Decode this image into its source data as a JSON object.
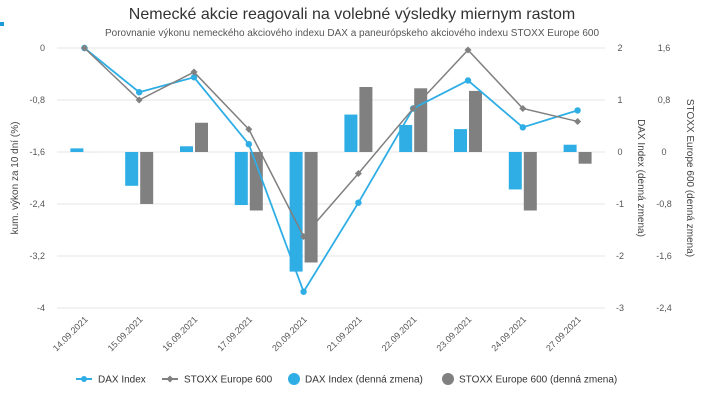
{
  "chart_data": {
    "type": "bar+line",
    "title": "Nemecké akcie reagovali na volebné výsledky miernym rastom",
    "subtitle": "Porovnanie výkonu nemeckého akciového indexu DAX a paneurópskeho akciového indexu STOXX Europe 600",
    "categories": [
      "14.09.2021",
      "15.09.2021",
      "16.09.2021",
      "17.09.2021",
      "20.09.2021",
      "21.09.2021",
      "22.09.2021",
      "23.09.2021",
      "24.09.2021",
      "27.09.2021"
    ],
    "axes": {
      "left": {
        "title": "kum. výkon za 10 dní (%)",
        "min": -4,
        "max": 0,
        "ticks": [
          "0",
          "-0,8",
          "-1,6",
          "-2,4",
          "-3,2",
          "-4"
        ]
      },
      "right1": {
        "title": "DAX Index (denná zmena)",
        "min": -3,
        "max": 2,
        "ticks": [
          "2",
          "1",
          "0",
          "-1",
          "-2",
          "-3"
        ]
      },
      "right2": {
        "title": "STOXX Europe 600 (denná zmena)",
        "min": -2.4,
        "max": 1.6,
        "ticks": [
          "1,6",
          "0,8",
          "0",
          "-0,8",
          "-1,6",
          "-2,4"
        ]
      }
    },
    "series": [
      {
        "name": "DAX Index",
        "type": "line",
        "axis": "left",
        "color": "#2eaee5",
        "values": [
          0,
          -0.68,
          -0.45,
          -1.48,
          -3.75,
          -2.38,
          -0.93,
          -0.5,
          -1.22,
          -0.96
        ]
      },
      {
        "name": "STOXX Europe 600",
        "type": "line",
        "axis": "left",
        "color": "#808080",
        "values": [
          0,
          -0.8,
          -0.37,
          -1.25,
          -2.9,
          -1.93,
          -0.93,
          -0.03,
          -0.93,
          -1.13
        ]
      },
      {
        "name": "DAX Index (denná zmena)",
        "type": "bar",
        "axis": "right1",
        "color": "#2eaee5",
        "values": [
          0.07,
          -0.65,
          0.11,
          -1.02,
          -2.3,
          0.72,
          0.52,
          0.44,
          -0.72,
          0.14
        ]
      },
      {
        "name": "STOXX Europe 600 (denná zmena)",
        "type": "bar",
        "axis": "right2",
        "color": "#808080",
        "values": [
          0,
          -0.8,
          0.45,
          -0.9,
          -1.7,
          1.0,
          0.98,
          0.94,
          -0.9,
          -0.18
        ]
      }
    ],
    "legend_position": "bottom"
  }
}
